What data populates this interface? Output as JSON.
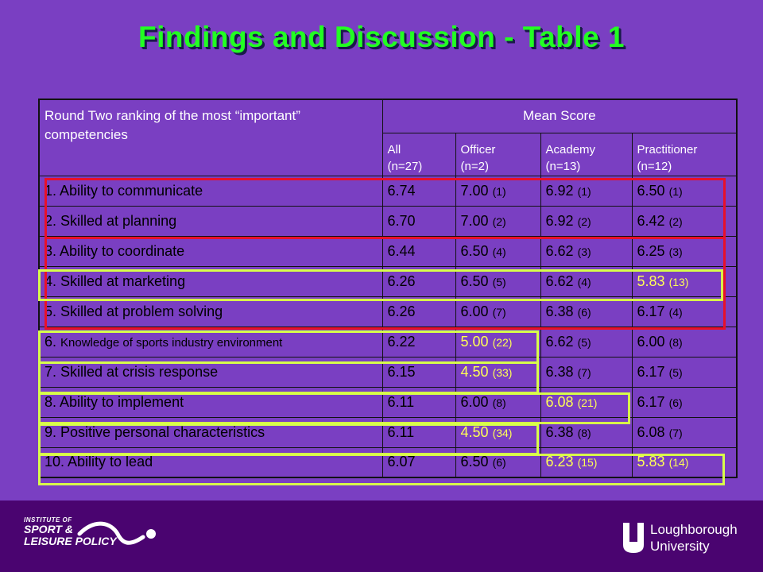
{
  "title": "Findings and Discussion - Table 1",
  "table": {
    "header": {
      "col1": "Round Two ranking of the most “important” competencies",
      "mean_score": "Mean Score",
      "groups": [
        {
          "name": "All",
          "n": "(n=27)"
        },
        {
          "name": "Officer",
          "n": "(n=2)"
        },
        {
          "name": "Academy",
          "n": "(n=13)"
        },
        {
          "name": "Practitioner",
          "n": "(n=12)"
        }
      ]
    },
    "rows": [
      {
        "label": "1. Ability to communicate",
        "all": "6.74",
        "officer": {
          "v": "7.00",
          "r": "(1)"
        },
        "academy": {
          "v": "6.92",
          "r": "(1)"
        },
        "practitioner": {
          "v": "6.50",
          "r": "(1)"
        }
      },
      {
        "label": "2. Skilled at planning",
        "all": "6.70",
        "officer": {
          "v": "7.00",
          "r": "(2)"
        },
        "academy": {
          "v": "6.92",
          "r": "(2)"
        },
        "practitioner": {
          "v": "6.42",
          "r": "(2)"
        }
      },
      {
        "label": "3. Ability to coordinate",
        "all": "6.44",
        "officer": {
          "v": "6.50",
          "r": "(4)"
        },
        "academy": {
          "v": "6.62",
          "r": "(3)"
        },
        "practitioner": {
          "v": "6.25",
          "r": "(3)"
        }
      },
      {
        "label": "4. Skilled at marketing",
        "all": "6.26",
        "officer": {
          "v": "6.50",
          "r": "(5)"
        },
        "academy": {
          "v": "6.62",
          "r": "(4)"
        },
        "practitioner": {
          "v": "5.83",
          "r": "(13)"
        }
      },
      {
        "label": "5. Skilled at problem solving",
        "all": "6.26",
        "officer": {
          "v": "6.00",
          "r": "(7)"
        },
        "academy": {
          "v": "6.38",
          "r": "(6)"
        },
        "practitioner": {
          "v": "6.17",
          "r": "(4)"
        }
      },
      {
        "label_num": "6.",
        "label": "Knowledge of sports industry environment",
        "all": "6.22",
        "officer": {
          "v": "5.00",
          "r": "(22)"
        },
        "academy": {
          "v": "6.62",
          "r": "(5)"
        },
        "practitioner": {
          "v": "6.00",
          "r": "(8)"
        }
      },
      {
        "label": "7. Skilled at crisis response",
        "all": "6.15",
        "officer": {
          "v": "4.50",
          "r": "(33)"
        },
        "academy": {
          "v": "6.38",
          "r": "(7)"
        },
        "practitioner": {
          "v": "6.17",
          "r": "(5)"
        }
      },
      {
        "label": "8. Ability to implement",
        "all": "6.11",
        "officer": {
          "v": "6.00",
          "r": "(8)"
        },
        "academy": {
          "v": "6.08",
          "r": "(21)"
        },
        "practitioner": {
          "v": "6.17",
          "r": "(6)"
        }
      },
      {
        "label": "9. Positive personal characteristics",
        "all": "6.11",
        "officer": {
          "v": "4.50",
          "r": "(34)"
        },
        "academy": {
          "v": "6.38",
          "r": "(8)"
        },
        "practitioner": {
          "v": "6.08",
          "r": "(7)"
        }
      },
      {
        "label": "10. Ability to lead",
        "all": "6.07",
        "officer": {
          "v": "6.50",
          "r": "(6)"
        },
        "academy": {
          "v": "6.23",
          "r": "(15)"
        },
        "practitioner": {
          "v": "5.83",
          "r": "(14)"
        }
      }
    ]
  },
  "footer": {
    "left_logo": {
      "line1": "INSTITUTE OF",
      "line2": "SPORT &",
      "line3": "LEISURE POLICY"
    },
    "right_logo": {
      "line1": "Loughborough",
      "line2": "University"
    }
  },
  "colors": {
    "background": "#7a3fc2",
    "title": "#22ff22",
    "red_highlight": "#e8102a",
    "yellow_highlight": "#d8ff4a",
    "footer": "#4a0470"
  }
}
